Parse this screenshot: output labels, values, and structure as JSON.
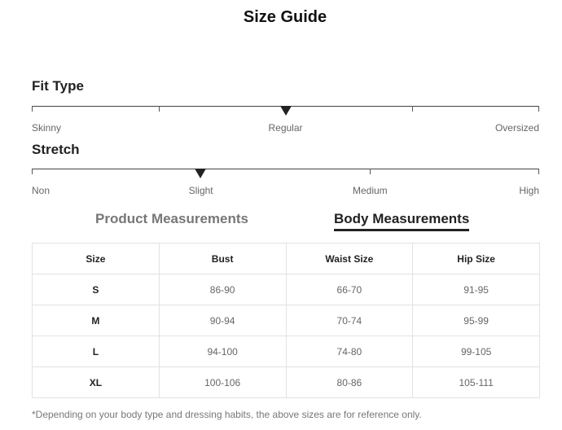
{
  "title": "Size Guide",
  "fit_type": {
    "heading": "Fit Type",
    "labels": [
      "Skinny",
      "Regular",
      "Oversized"
    ],
    "selected": "Regular",
    "selected_fraction": 0.5
  },
  "stretch": {
    "heading": "Stretch",
    "labels": [
      "Non",
      "Slight",
      "Medium",
      "High"
    ],
    "selected": "Slight",
    "selected_fraction": 0.333
  },
  "tabs": [
    {
      "label": "Product Measurements",
      "active": false
    },
    {
      "label": "Body Measurements",
      "active": true
    }
  ],
  "table": {
    "headers": [
      "Size",
      "Bust",
      "Waist Size",
      "Hip Size"
    ],
    "rows": [
      [
        "S",
        "86-90",
        "66-70",
        "91-95"
      ],
      [
        "M",
        "90-94",
        "70-74",
        "95-99"
      ],
      [
        "L",
        "94-100",
        "74-80",
        "99-105"
      ],
      [
        "XL",
        "100-106",
        "80-86",
        "105-111"
      ]
    ]
  },
  "note": "*Depending on your body type and dressing habits, the above sizes are for reference only."
}
